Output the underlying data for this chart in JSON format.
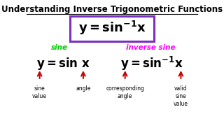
{
  "title": "Understanding Inverse Trigonometric Functions",
  "bg_color": "#ffffff",
  "title_color": "#000000",
  "title_fontsize": 8.5,
  "box_color": "#7b2fbe",
  "sine_label": "sine",
  "sine_label_color": "#00cc00",
  "inv_sine_label": "inverse sine",
  "inv_sine_label_color": "#ff00ff",
  "arrow_color": "#cc0000",
  "annot_color": "#000000"
}
